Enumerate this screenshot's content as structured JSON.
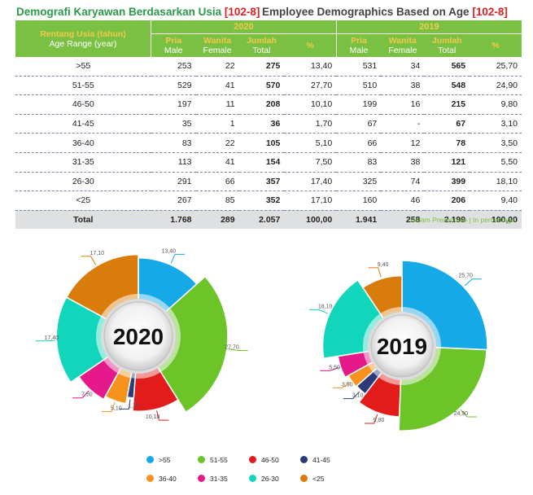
{
  "header": {
    "title_id": "Demografi Karyawan Berdasarkan Usia",
    "title_en": "Employee Demographics Based on Age",
    "code": "[102-8]"
  },
  "table": {
    "range_header_id": "Rentang Usia (tahun)",
    "range_header_en": "Age Range (year)",
    "years": [
      "2020",
      "2019"
    ],
    "col_headers": [
      {
        "id": "Pria",
        "en": "Male"
      },
      {
        "id": "Wanita",
        "en": "Female"
      },
      {
        "id": "Jumlah",
        "en": "Total"
      },
      {
        "id": "%",
        "en": ""
      }
    ],
    "rows": [
      {
        "age": ">55",
        "v2020": [
          "253",
          "22",
          "275",
          "13,40"
        ],
        "v2019": [
          "531",
          "34",
          "565",
          "25,70"
        ]
      },
      {
        "age": "51-55",
        "v2020": [
          "529",
          "41",
          "570",
          "27,70"
        ],
        "v2019": [
          "510",
          "38",
          "548",
          "24,90"
        ]
      },
      {
        "age": "46-50",
        "v2020": [
          "197",
          "11",
          "208",
          "10,10"
        ],
        "v2019": [
          "199",
          "16",
          "215",
          "9,80"
        ]
      },
      {
        "age": "41-45",
        "v2020": [
          "35",
          "1",
          "36",
          "1,70"
        ],
        "v2019": [
          "67",
          "-",
          "67",
          "3,10"
        ]
      },
      {
        "age": "36-40",
        "v2020": [
          "83",
          "22",
          "105",
          "5,10"
        ],
        "v2019": [
          "66",
          "12",
          "78",
          "3,50"
        ]
      },
      {
        "age": "31-35",
        "v2020": [
          "113",
          "41",
          "154",
          "7,50"
        ],
        "v2019": [
          "83",
          "38",
          "121",
          "5,50"
        ]
      },
      {
        "age": "26-30",
        "v2020": [
          "291",
          "66",
          "357",
          "17,40"
        ],
        "v2019": [
          "325",
          "74",
          "399",
          "18,10"
        ]
      },
      {
        "age": "<25",
        "v2020": [
          "267",
          "85",
          "352",
          "17,10"
        ],
        "v2019": [
          "160",
          "46",
          "206",
          "9,40"
        ]
      }
    ],
    "total": {
      "label": "Total",
      "v2020": [
        "1.768",
        "289",
        "2.057",
        "100,00"
      ],
      "v2019": [
        "1.941",
        "258",
        "2.199",
        "100,00"
      ]
    }
  },
  "note": "Dalam Presentase | In percentage",
  "chart_data": [
    {
      "type": "pie",
      "center_label": "2020",
      "categories": [
        ">55",
        "51-55",
        "46-50",
        "41-45",
        "36-40",
        "31-35",
        "26-30",
        "<25"
      ],
      "values": [
        13.4,
        27.7,
        10.1,
        1.7,
        5.1,
        7.5,
        17.4,
        17.1
      ],
      "labels": [
        "13,40",
        "27,70",
        "10,10",
        "1,70",
        "5,10",
        "7,50",
        "17,40",
        "17,10"
      ]
    },
    {
      "type": "pie",
      "center_label": "2019",
      "categories": [
        ">55",
        "51-55",
        "46-50",
        "41-45",
        "36-40",
        "31-35",
        "26-30",
        "<25"
      ],
      "values": [
        25.7,
        24.9,
        9.8,
        3.1,
        3.5,
        5.5,
        18.1,
        9.4
      ],
      "labels": [
        "25,70",
        "24,90",
        "9,80",
        "3,10",
        "3,50",
        "5,50",
        "18,10",
        "9,40"
      ]
    }
  ],
  "legend": [
    {
      "label": ">55",
      "color": "#16a9e8"
    },
    {
      "label": "51-55",
      "color": "#6cc428"
    },
    {
      "label": "46-50",
      "color": "#e21b1b"
    },
    {
      "label": "41-45",
      "color": "#2c3a78"
    },
    {
      "label": "36-40",
      "color": "#f7931d"
    },
    {
      "label": "31-35",
      "color": "#e5198a"
    },
    {
      "label": "26-30",
      "color": "#12d6bc"
    },
    {
      "label": "<25",
      "color": "#d97c0b"
    }
  ]
}
